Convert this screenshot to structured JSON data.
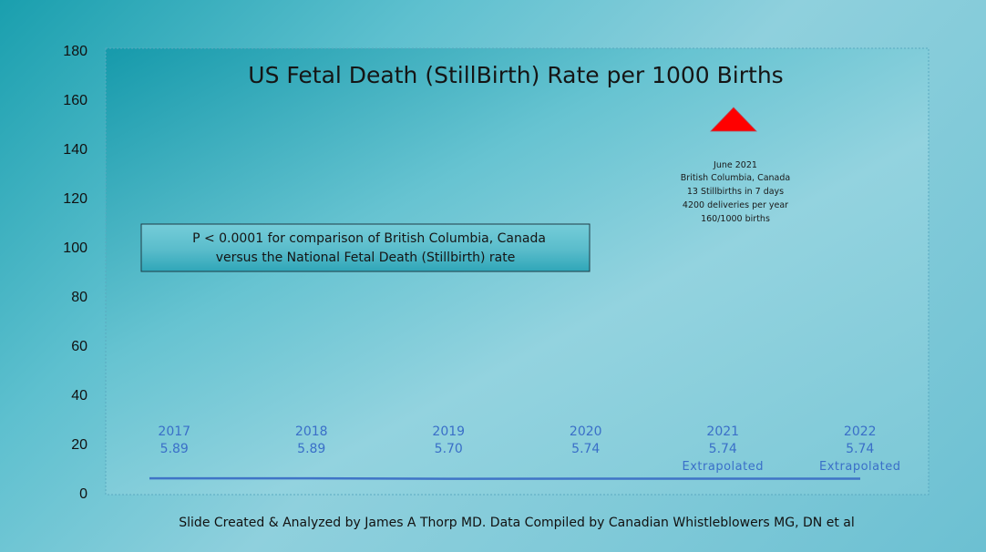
{
  "chart_data": {
    "type": "line",
    "title": "US Fetal Death (StillBirth) Rate per 1000 Births",
    "ylim": [
      0,
      180
    ],
    "yticks": [
      0,
      20,
      40,
      60,
      80,
      100,
      120,
      140,
      160,
      180
    ],
    "grid": false,
    "categories": [
      "2017",
      "2018",
      "2019",
      "2020",
      "2021",
      "2022"
    ],
    "value_labels": [
      "5.89",
      "5.89",
      "5.70",
      "5.74",
      "5.74",
      "5.74"
    ],
    "category_notes": [
      "",
      "",
      "",
      "",
      "Extrapolated",
      "Extrapolated"
    ],
    "series": [
      {
        "values": [
          5.89,
          5.89,
          5.7,
          5.74,
          5.74,
          5.74
        ],
        "color": "#3f74c6"
      }
    ],
    "marker": {
      "shape": "triangle",
      "value": 160,
      "color": "#ff0000",
      "annotation": [
        "June 2021",
        "British Columbia, Canada",
        "13 Stillbirths in 7 days",
        "4200 deliveries per year",
        "160/1000 births"
      ]
    },
    "stat_box": [
      "P < 0.0001 for comparison of British Columbia, Canada",
      "versus the National Fetal Death (Stillbirth) rate"
    ]
  },
  "footer": "Slide Created & Analyzed by James A Thorp MD. Data Compiled by Canadian Whistleblowers MG, DN et al"
}
